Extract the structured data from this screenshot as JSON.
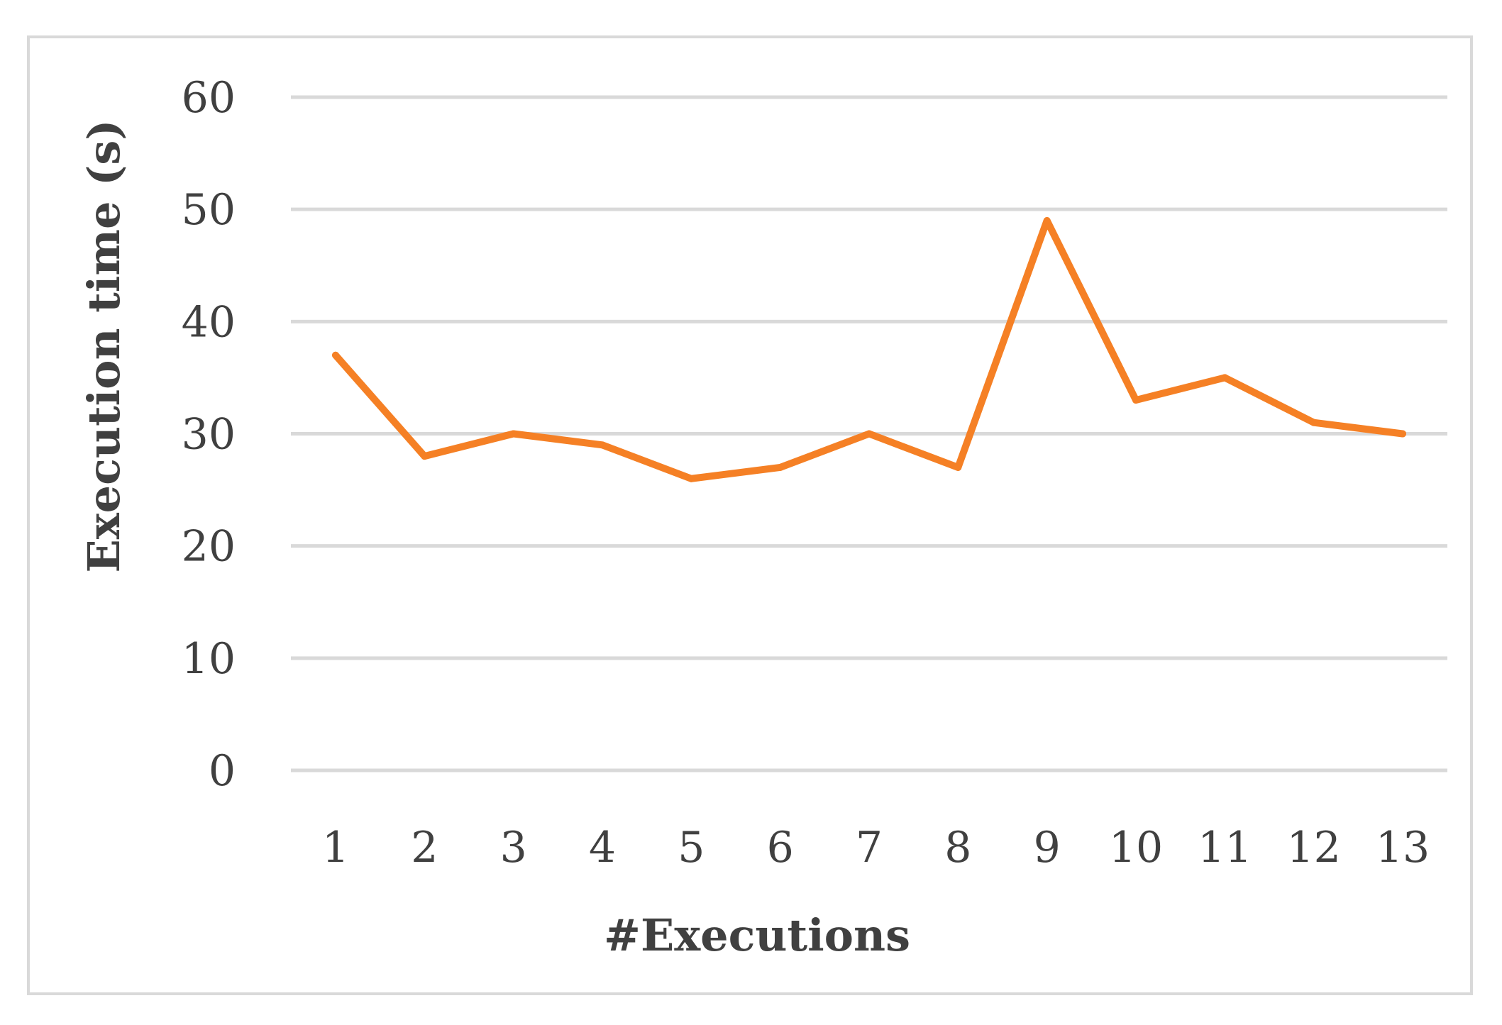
{
  "chart_data": {
    "type": "line",
    "title": "",
    "xlabel": "#Executions",
    "ylabel": "Execution time (s)",
    "categories": [
      "1",
      "2",
      "3",
      "4",
      "5",
      "6",
      "7",
      "8",
      "9",
      "10",
      "11",
      "12",
      "13"
    ],
    "series": [
      {
        "values": [
          37,
          28,
          30,
          29,
          26,
          27,
          30,
          27,
          49,
          33,
          35,
          31,
          30
        ],
        "color": "#F58025"
      }
    ],
    "ylim": [
      0,
      60
    ],
    "yticks": [
      "0",
      "10",
      "20",
      "30",
      "40",
      "50",
      "60"
    ],
    "grid": true,
    "legend": "none",
    "gridColor": "#d9d9d9",
    "textColor": "#404040"
  }
}
